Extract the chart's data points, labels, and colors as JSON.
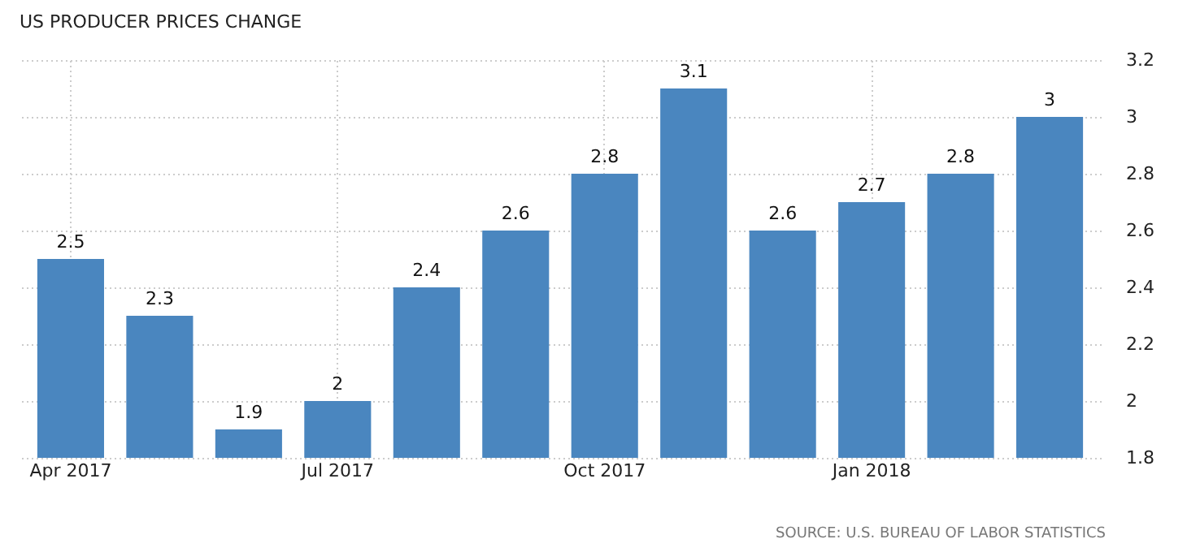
{
  "chart_data": {
    "type": "bar",
    "title": "US PRODUCER PRICES CHANGE",
    "categories": [
      "Apr 2017",
      null,
      null,
      "Jul 2017",
      null,
      null,
      "Oct 2017",
      null,
      null,
      "Jan 2018",
      null,
      null
    ],
    "values": [
      2.5,
      2.3,
      1.9,
      2,
      2.4,
      2.6,
      2.8,
      3.1,
      2.6,
      2.7,
      2.8,
      3
    ],
    "color": "#4a86bf",
    "ylim": [
      1.8,
      3.2
    ],
    "yticks": [
      1.8,
      2,
      2.2,
      2.4,
      2.6,
      2.8,
      3,
      3.2
    ],
    "grid": true,
    "data_labels": true,
    "annotations": [
      "SOURCE: U.S. BUREAU OF LABOR STATISTICS"
    ]
  }
}
